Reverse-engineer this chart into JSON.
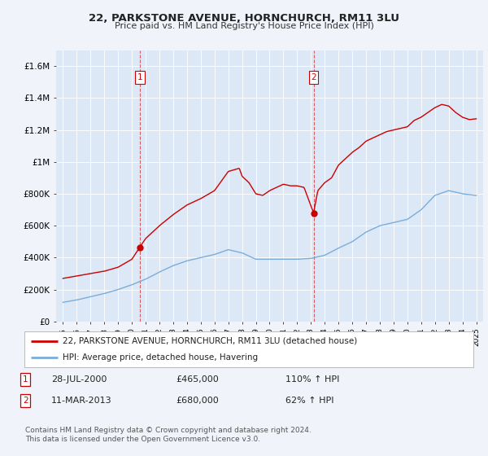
{
  "title": "22, PARKSTONE AVENUE, HORNCHURCH, RM11 3LU",
  "subtitle": "Price paid vs. HM Land Registry's House Price Index (HPI)",
  "legend_line1": "22, PARKSTONE AVENUE, HORNCHURCH, RM11 3LU (detached house)",
  "legend_line2": "HPI: Average price, detached house, Havering",
  "sale1_date": "28-JUL-2000",
  "sale1_price": 465000,
  "sale1_label": "110% ↑ HPI",
  "sale2_date": "11-MAR-2013",
  "sale2_price": 680000,
  "sale2_label": "62% ↑ HPI",
  "sale1_year": 2000.57,
  "sale2_year": 2013.19,
  "footnote": "Contains HM Land Registry data © Crown copyright and database right 2024.\nThis data is licensed under the Open Government Licence v3.0.",
  "background_color": "#f0f4fa",
  "plot_bg_color": "#dce8f5",
  "red_color": "#cc0000",
  "blue_color": "#7aaddb",
  "ylim": [
    0,
    1700000
  ],
  "xlim": [
    1994.5,
    2025.5
  ],
  "red_kx": [
    1995,
    1996,
    1997,
    1998,
    1999,
    2000,
    2000.57,
    2001,
    2002,
    2003,
    2004,
    2005,
    2006,
    2007,
    2007.8,
    2008,
    2008.5,
    2009,
    2009.5,
    2010,
    2010.5,
    2011,
    2011.5,
    2012,
    2012.5,
    2013.19,
    2013.5,
    2014,
    2014.5,
    2015,
    2015.5,
    2016,
    2016.5,
    2017,
    2017.5,
    2018,
    2018.5,
    2019,
    2019.5,
    2020,
    2020.5,
    2021,
    2021.5,
    2022,
    2022.5,
    2023,
    2023.5,
    2024,
    2024.5,
    2025
  ],
  "red_ky": [
    270000,
    285000,
    300000,
    315000,
    340000,
    390000,
    465000,
    520000,
    600000,
    670000,
    730000,
    770000,
    820000,
    940000,
    960000,
    910000,
    870000,
    800000,
    790000,
    820000,
    840000,
    860000,
    850000,
    850000,
    840000,
    680000,
    820000,
    870000,
    900000,
    980000,
    1020000,
    1060000,
    1090000,
    1130000,
    1150000,
    1170000,
    1190000,
    1200000,
    1210000,
    1220000,
    1260000,
    1280000,
    1310000,
    1340000,
    1360000,
    1350000,
    1310000,
    1280000,
    1265000,
    1270000
  ],
  "blue_kx": [
    1995,
    1996,
    1997,
    1998,
    1999,
    2000,
    2001,
    2002,
    2003,
    2004,
    2005,
    2006,
    2007,
    2008,
    2009,
    2010,
    2011,
    2012,
    2013,
    2014,
    2015,
    2016,
    2017,
    2018,
    2019,
    2020,
    2021,
    2022,
    2023,
    2024,
    2025
  ],
  "blue_ky": [
    120000,
    135000,
    155000,
    175000,
    200000,
    230000,
    265000,
    310000,
    350000,
    380000,
    400000,
    420000,
    450000,
    430000,
    390000,
    390000,
    390000,
    390000,
    395000,
    415000,
    460000,
    500000,
    560000,
    600000,
    620000,
    640000,
    700000,
    790000,
    820000,
    800000,
    790000
  ]
}
